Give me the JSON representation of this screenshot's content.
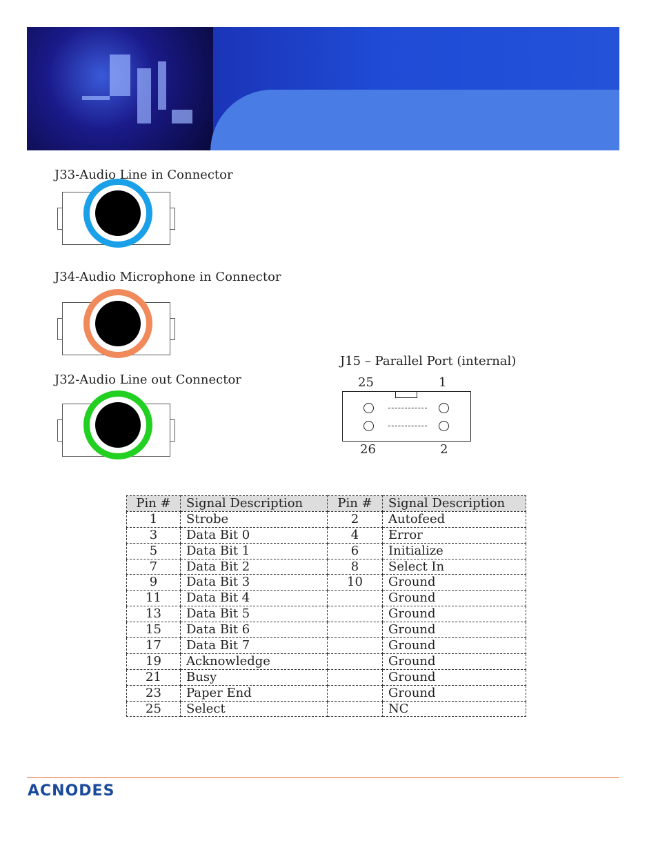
{
  "connectors": [
    {
      "title": "J33-Audio Line in Connector",
      "color": "#1aa0e8"
    },
    {
      "title": "J34-Audio Microphone in Connector",
      "color": "#f08a5a"
    },
    {
      "title": "J32-Audio Line out Connector",
      "color": "#22d022"
    }
  ],
  "parallel": {
    "title": "J15 – Parallel Port (internal)",
    "pin_tl": "25",
    "pin_tr": "1",
    "pin_bl": "26",
    "pin_br": "2"
  },
  "table": {
    "headers": [
      "Pin #",
      "Signal Description",
      "Pin #",
      "Signal Description"
    ],
    "rows": [
      [
        "1",
        "Strobe",
        "2",
        "Autofeed"
      ],
      [
        "3",
        "Data Bit 0",
        "4",
        "Error"
      ],
      [
        "5",
        "Data Bit 1",
        "6",
        "Initialize"
      ],
      [
        "7",
        "Data Bit 2",
        "8",
        "Select In"
      ],
      [
        "9",
        "Data Bit 3",
        "10",
        "Ground"
      ],
      [
        "11",
        "Data Bit 4",
        "",
        "Ground"
      ],
      [
        "13",
        "Data Bit 5",
        "",
        "Ground"
      ],
      [
        "15",
        "Data Bit 6",
        "",
        "Ground"
      ],
      [
        "17",
        "Data Bit 7",
        "",
        "Ground"
      ],
      [
        "19",
        "Acknowledge",
        "",
        "Ground"
      ],
      [
        "21",
        "Busy",
        "",
        "Ground"
      ],
      [
        "23",
        "Paper  End",
        "",
        "Ground"
      ],
      [
        "25",
        "Select",
        "",
        "NC"
      ]
    ]
  },
  "footer": {
    "logo": "ACNODES",
    "rule_color": "#e8601c"
  }
}
